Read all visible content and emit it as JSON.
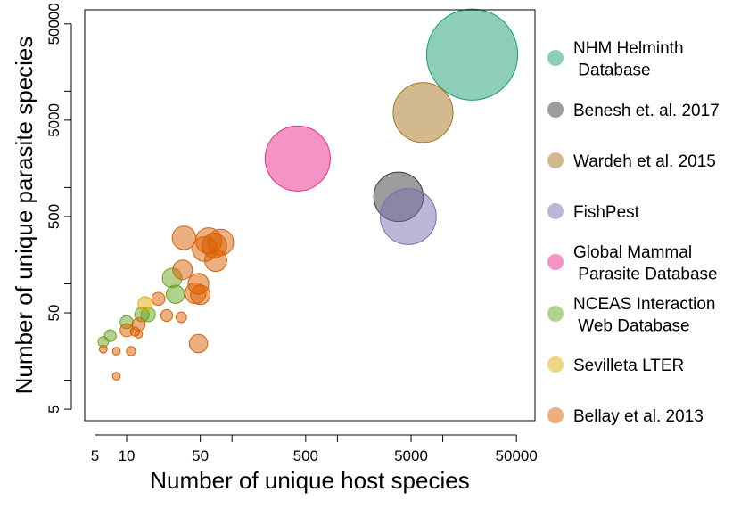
{
  "chart_data": {
    "type": "scatter",
    "xlabel": "Number of unique host species",
    "ylabel": "Number of unique parasite species",
    "xscale": "log",
    "yscale": "log",
    "xlim": [
      4,
      75000
    ],
    "ylim": [
      3.8,
      70000
    ],
    "x_ticks": [
      5,
      10,
      50,
      100,
      500,
      1000,
      5000,
      10000,
      50000
    ],
    "x_tick_labels": [
      "5",
      "10",
      "50",
      "",
      "500",
      "",
      "5000",
      "",
      "50000"
    ],
    "y_ticks": [
      5,
      10,
      50,
      100,
      500,
      1000,
      5000,
      10000,
      50000
    ],
    "y_tick_labels": [
      "5",
      "",
      "50",
      "",
      "500",
      "",
      "5000",
      "",
      "50000"
    ],
    "grid": false,
    "legend_position": "right",
    "series": [
      {
        "name": "NHM Helminth\n Database",
        "color": "#1B9E77",
        "points": [
          {
            "x": 19000,
            "y": 24000,
            "size": 7.0
          }
        ]
      },
      {
        "name": "Benesh et. al. 2017",
        "color": "#3A3A3A",
        "points": [
          {
            "x": 3800,
            "y": 800,
            "size": 3.8
          }
        ]
      },
      {
        "name": "Wardeh et al. 2015",
        "color": "#A6761D",
        "points": [
          {
            "x": 6500,
            "y": 6000,
            "size": 4.6
          }
        ]
      },
      {
        "name": "FishPest",
        "color": "#7570B3",
        "points": [
          {
            "x": 4700,
            "y": 500,
            "size": 4.3
          }
        ]
      },
      {
        "name": "Global Mammal\n Parasite Database",
        "color": "#E7298A",
        "points": [
          {
            "x": 420,
            "y": 2000,
            "size": 5.0
          }
        ]
      },
      {
        "name": "NCEAS Interaction\n Web Database",
        "color": "#66A61E",
        "points": [
          {
            "x": 6,
            "y": 25,
            "size": 0.8
          },
          {
            "x": 7,
            "y": 29,
            "size": 0.9
          },
          {
            "x": 10,
            "y": 40,
            "size": 1.0
          },
          {
            "x": 14,
            "y": 48,
            "size": 1.1
          },
          {
            "x": 16,
            "y": 48,
            "size": 1.1
          },
          {
            "x": 27,
            "y": 115,
            "size": 1.5
          },
          {
            "x": 29,
            "y": 78,
            "size": 1.4
          }
        ]
      },
      {
        "name": "Sevilleta LTER",
        "color": "#E6AB02",
        "points": [
          {
            "x": 15,
            "y": 62,
            "size": 1.1
          }
        ]
      },
      {
        "name": "Bellay et al. 2013",
        "color": "#D95F02",
        "points": [
          {
            "x": 6,
            "y": 21,
            "size": 0.6
          },
          {
            "x": 8,
            "y": 20,
            "size": 0.6
          },
          {
            "x": 8,
            "y": 11,
            "size": 0.6
          },
          {
            "x": 11,
            "y": 20,
            "size": 0.7
          },
          {
            "x": 10,
            "y": 33,
            "size": 1.0
          },
          {
            "x": 12,
            "y": 32,
            "size": 0.7
          },
          {
            "x": 13,
            "y": 30,
            "size": 0.6
          },
          {
            "x": 13,
            "y": 38,
            "size": 1.0
          },
          {
            "x": 20,
            "y": 70,
            "size": 1.0
          },
          {
            "x": 24,
            "y": 47,
            "size": 0.9
          },
          {
            "x": 33,
            "y": 45,
            "size": 0.8
          },
          {
            "x": 34,
            "y": 140,
            "size": 1.5
          },
          {
            "x": 35,
            "y": 300,
            "size": 1.8
          },
          {
            "x": 45,
            "y": 80,
            "size": 1.6
          },
          {
            "x": 48,
            "y": 100,
            "size": 1.6
          },
          {
            "x": 50,
            "y": 77,
            "size": 1.5
          },
          {
            "x": 48,
            "y": 24,
            "size": 1.4
          },
          {
            "x": 55,
            "y": 230,
            "size": 1.9
          },
          {
            "x": 60,
            "y": 280,
            "size": 2.0
          },
          {
            "x": 68,
            "y": 250,
            "size": 1.9
          },
          {
            "x": 70,
            "y": 175,
            "size": 1.7
          },
          {
            "x": 78,
            "y": 270,
            "size": 2.0
          }
        ]
      }
    ]
  }
}
